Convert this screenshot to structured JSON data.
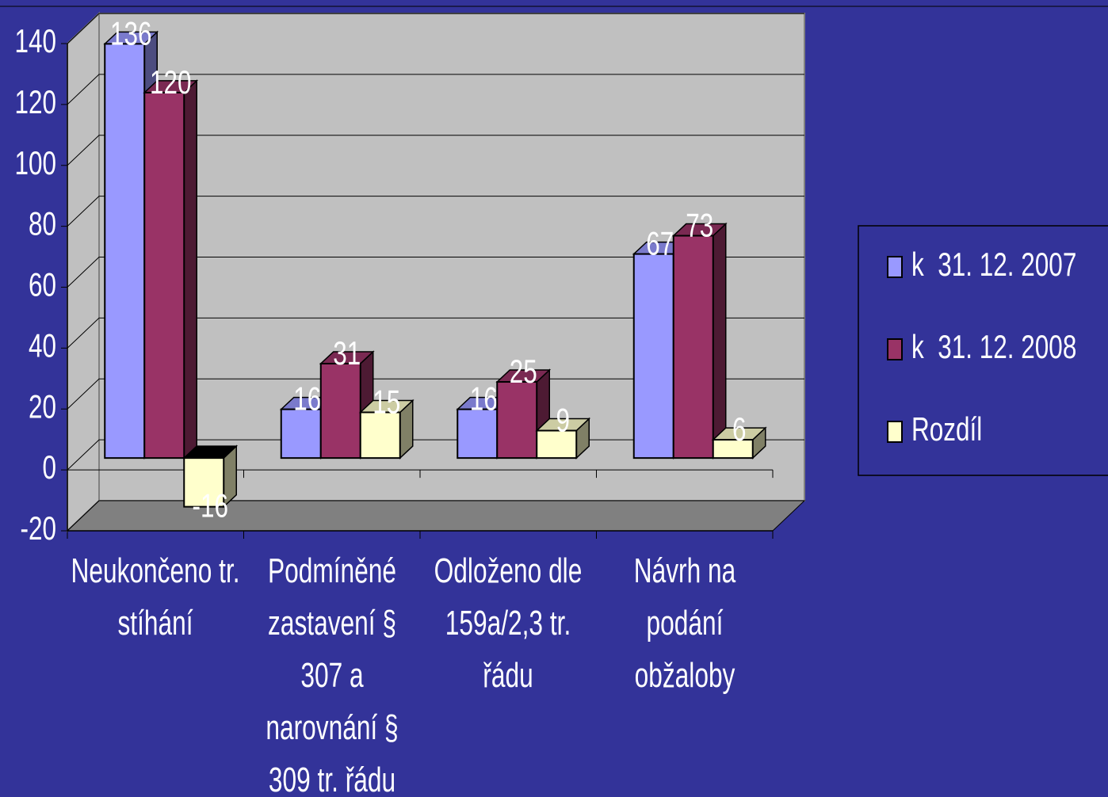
{
  "chart_data": {
    "type": "bar3d",
    "categories": [
      "Neukončeno tr. stíhání",
      "Podmíněné zastavení § 307 a narovnání § 309 tr. řádu",
      "Odloženo dle 159a/2,3 tr. řádu",
      "Návrh na podání obžaloby"
    ],
    "series": [
      {
        "name": "k  31. 12. 2007",
        "color": "#9999ff",
        "values": [
          136,
          16,
          16,
          67
        ]
      },
      {
        "name": "k  31. 12. 2008",
        "color": "#993366",
        "values": [
          120,
          31,
          25,
          73
        ]
      },
      {
        "name": "Rozdíl",
        "color": "#ffffcc",
        "values": [
          -16,
          15,
          9,
          6
        ]
      }
    ],
    "ylim": [
      -20,
      140
    ],
    "yticks": [
      -20,
      0,
      20,
      40,
      60,
      80,
      100,
      120,
      140
    ],
    "grid": true,
    "legend": "right"
  }
}
